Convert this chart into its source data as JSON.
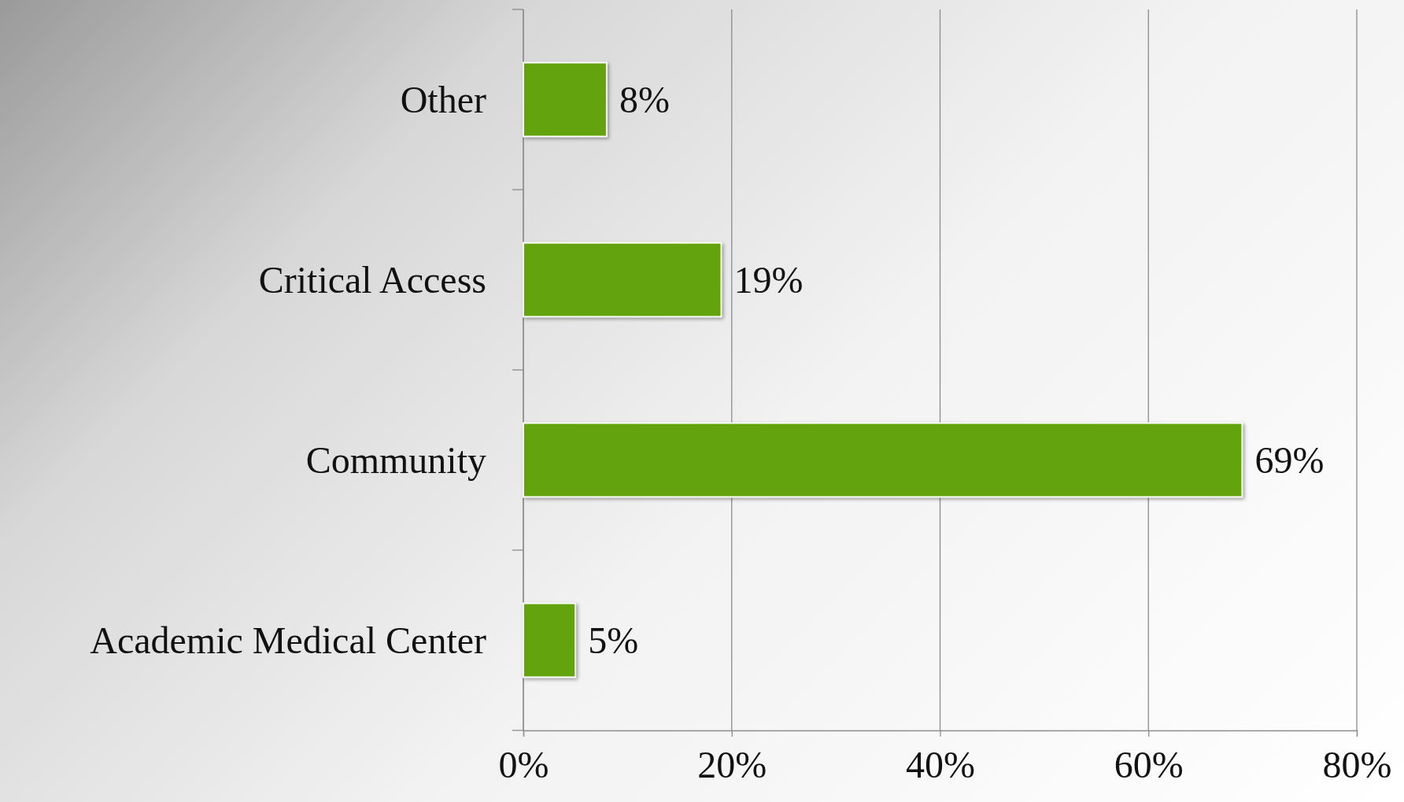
{
  "chart_data": {
    "type": "bar",
    "orientation": "horizontal",
    "categories": [
      "Other",
      "Critical Access",
      "Community",
      "Academic Medical Center"
    ],
    "values": [
      8,
      19,
      69,
      5
    ],
    "color": "#62a30e",
    "value_labels": [
      "8%",
      "19%",
      "69%",
      "5%"
    ],
    "xlim": [
      0,
      80
    ],
    "xticks": [
      {
        "value": 0,
        "label": "0%"
      },
      {
        "value": 20,
        "label": "20%"
      },
      {
        "value": 40,
        "label": "40%"
      },
      {
        "value": 60,
        "label": "60%"
      },
      {
        "value": 80,
        "label": "80%"
      }
    ],
    "grid": "x"
  }
}
